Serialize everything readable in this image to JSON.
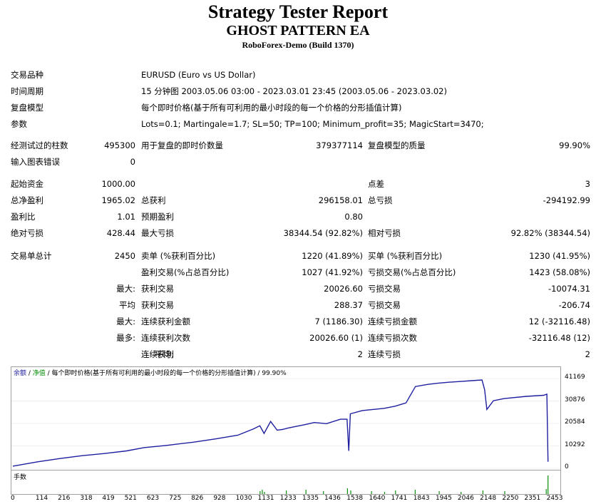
{
  "header": {
    "title": "Strategy Tester Report",
    "expert": "GHOST PATTERN EA",
    "server": "RoboForex-Demo (Build 1370)"
  },
  "settings": {
    "symbol_label": "交易品种",
    "symbol_value": "EURUSD (Euro vs US Dollar)",
    "period_label": "时间周期",
    "period_value": "15 分钟图 2003.05.06 03:00 - 2023.03.01 23:45 (2003.05.06 - 2023.03.02)",
    "model_label": "复盘模型",
    "model_value": "每个即时价格(基于所有可利用的最小时段的每一个价格的分形插值计算)",
    "params_label": "参数",
    "params_value": "Lots=0.1; Martingale=1.7; SL=50; TP=100; Minimum_profit=35; MagicStart=3470;"
  },
  "stats": {
    "bars_label": "经测试过的柱数",
    "bars_value": "495300",
    "ticks_label": "用于复盘的即时价数量",
    "ticks_value": "379377114",
    "quality_label": "复盘模型的质量",
    "quality_value": "99.90%",
    "errors_label": "输入图表错误",
    "errors_value": "0",
    "deposit_label": "起始资金",
    "deposit_value": "1000.00",
    "spread_label": "点差",
    "spread_value": "3",
    "net_label": "总净盈利",
    "net_value": "1965.02",
    "gross_profit_label": "总获利",
    "gross_profit_value": "296158.01",
    "gross_loss_label": "总亏损",
    "gross_loss_value": "-294192.99",
    "pf_label": "盈利比",
    "pf_value": "1.01",
    "expected_label": "预期盈利",
    "expected_value": "0.80",
    "abs_dd_label": "绝对亏损",
    "abs_dd_value": "428.44",
    "max_dd_label": "最大亏损",
    "max_dd_value": "38344.54 (92.82%)",
    "rel_dd_label": "相对亏损",
    "rel_dd_value": "92.82% (38344.54)",
    "total_trades_label": "交易单总计",
    "total_trades_value": "2450",
    "short_label": "卖单 (%获利百分比)",
    "short_value": "1220 (41.89%)",
    "long_label": "买单 (%获利百分比)",
    "long_value": "1230 (41.95%)",
    "profit_trades_label": "盈利交易(%占总百分比)",
    "profit_trades_value": "1027 (41.92%)",
    "loss_trades_label": "亏损交易(%占总百分比)",
    "loss_trades_value": "1423 (58.08%)",
    "largest_prefix": "最大:",
    "largest_profit_label": "获利交易",
    "largest_profit_value": "20026.60",
    "largest_loss_label": "亏损交易",
    "largest_loss_value": "-10074.31",
    "average_prefix": "平均",
    "avg_profit_label": "获利交易",
    "avg_profit_value": "288.37",
    "avg_loss_label": "亏损交易",
    "avg_loss_value": "-206.74",
    "max_cons_prefix": "最大:",
    "max_cons_wins_label": "连续获利金额",
    "max_cons_wins_value": "7 (1186.30)",
    "max_cons_losses_label": "连续亏损金额",
    "max_cons_losses_value": "12 (-32116.48)",
    "most_prefix": "最多:",
    "max_cons_profit_label": "连续获利次数",
    "max_cons_profit_value": "20026.60 (1)",
    "max_cons_loss_label": "连续亏损次数",
    "max_cons_loss_value": "-32116.48 (12)",
    "avg_cons_prefix": "平均:",
    "avg_cons_wins_label": "连续获利",
    "avg_cons_wins_value": "2",
    "avg_cons_losses_label": "连续亏损",
    "avg_cons_losses_value": "2"
  },
  "graph": {
    "legend_balance": "余额",
    "legend_sep1": " / ",
    "legend_equity": "净值",
    "legend_rest": " / 每个即时价格(基于所有可利用的最小时段的每一个价格的分形插值计算) / 99.90%",
    "volume_label": "手数",
    "balance_color": "#1f1fa0",
    "volume_color": "#0a8f0a",
    "y_ticks": [
      "41169",
      "30876",
      "20584",
      "10292",
      "0"
    ],
    "x_ticks": [
      "0",
      "114",
      "216",
      "318",
      "419",
      "521",
      "623",
      "725",
      "826",
      "928",
      "1030",
      "1131",
      "1233",
      "1335",
      "1436",
      "1538",
      "1640",
      "1741",
      "1843",
      "1945",
      "2046",
      "2148",
      "2250",
      "2351",
      "2453"
    ]
  },
  "chart_data": {
    "type": "line",
    "title": "",
    "xlabel": "",
    "ylabel": "",
    "xlim": [
      0,
      2500
    ],
    "ylim": [
      0,
      41169
    ],
    "series": [
      {
        "name": "余额",
        "x": [
          0,
          114,
          216,
          318,
          419,
          521,
          600,
          700,
          826,
          928,
          1030,
          1100,
          1131,
          1150,
          1180,
          1210,
          1233,
          1260,
          1310,
          1335,
          1380,
          1436,
          1500,
          1530,
          1538,
          1545,
          1600,
          1700,
          1750,
          1800,
          1843,
          1900,
          1945,
          2000,
          2046,
          2100,
          2148,
          2160,
          2170,
          2200,
          2250,
          2351,
          2430,
          2445,
          2450
        ],
        "y": [
          1000,
          3000,
          4500,
          5800,
          6800,
          8000,
          9500,
          10500,
          12000,
          13500,
          15200,
          18000,
          19500,
          16000,
          21500,
          17500,
          17800,
          18500,
          19500,
          20000,
          21000,
          20500,
          22500,
          22500,
          8000,
          25000,
          26500,
          27500,
          28500,
          30000,
          37500,
          38500,
          39000,
          39500,
          39800,
          40200,
          40500,
          36000,
          27000,
          31000,
          32000,
          33000,
          33500,
          34000,
          3000
        ]
      }
    ]
  }
}
